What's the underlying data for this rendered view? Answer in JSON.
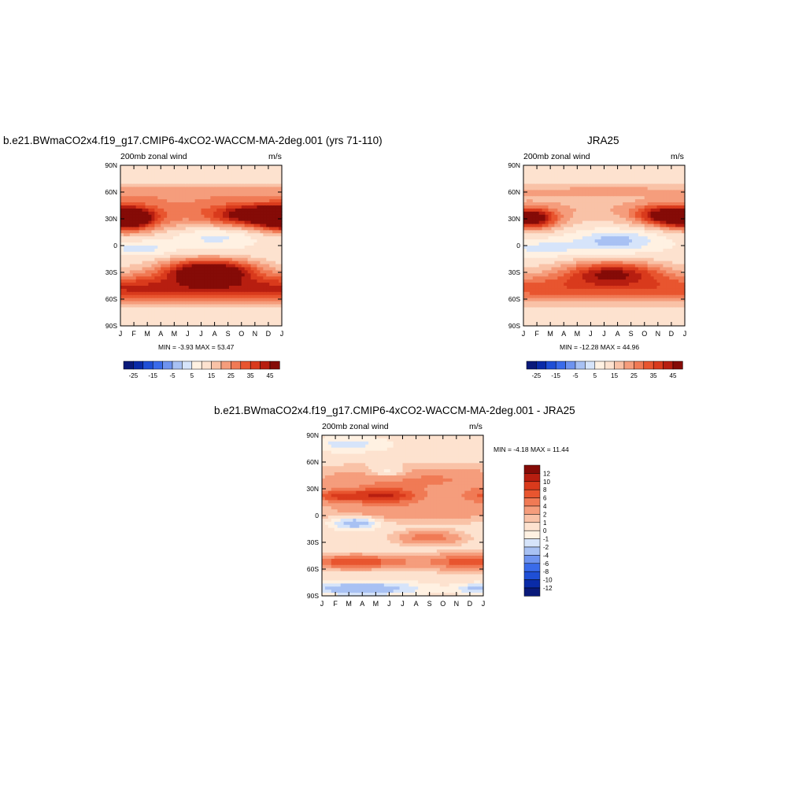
{
  "colors": {
    "blues": [
      "#0a1a7a",
      "#0a2ba8",
      "#1f4fd6",
      "#3a6bea",
      "#6e93ef",
      "#a8c1f3",
      "#d6e4fa"
    ],
    "whites": [
      "#fff1e2",
      "#fde2cf"
    ],
    "reds": [
      "#f9c2a7",
      "#f59d7c",
      "#f07a55",
      "#e8552f",
      "#d93a1c",
      "#b71e10",
      "#850b07"
    ]
  },
  "panels": [
    {
      "title": "b.e21.BWmaCO2x4.f19_g17.CMIP6-4xCO2-WACCM-MA-2deg.001 (yrs 71-110)",
      "left_label": "200mb zonal wind",
      "right_label": "m/s",
      "stats": "MIN =  -3.93 MAX =  53.47"
    },
    {
      "title": "JRA25",
      "left_label": "200mb zonal wind",
      "right_label": "m/s",
      "stats": "MIN = -12.28 MAX =  44.96"
    },
    {
      "title": "b.e21.BWmaCO2x4.f19_g17.CMIP6-4xCO2-WACCM-MA-2deg.001 - JRA25",
      "left_label": "200mb zonal wind",
      "right_label": "m/s",
      "stats": "MIN =  -4.18 MAX =  11.44"
    }
  ],
  "chart_data": [
    {
      "type": "heatmap",
      "title": "b.e21.BWmaCO2x4.f19_g17.CMIP6-4xCO2-WACCM-MA-2deg.001 (yrs 71-110)",
      "x_ticks": [
        "J",
        "F",
        "M",
        "A",
        "M",
        "J",
        "J",
        "A",
        "S",
        "O",
        "N",
        "D",
        "J"
      ],
      "y_ticks": [
        "90N",
        "60N",
        "30N",
        "0",
        "30S",
        "60S",
        "90S"
      ],
      "colorbar_labels": [
        "-25",
        "-15",
        "-5",
        "5",
        "15",
        "25",
        "35",
        "45"
      ],
      "min": -3.93,
      "max": 53.47
    },
    {
      "type": "heatmap",
      "title": "JRA25",
      "x_ticks": [
        "J",
        "F",
        "M",
        "A",
        "M",
        "J",
        "J",
        "A",
        "S",
        "O",
        "N",
        "D",
        "J"
      ],
      "y_ticks": [
        "90N",
        "60N",
        "30N",
        "0",
        "30S",
        "60S",
        "90S"
      ],
      "colorbar_labels": [
        "-25",
        "-15",
        "-5",
        "5",
        "15",
        "25",
        "35",
        "45"
      ],
      "min": -12.28,
      "max": 44.96
    },
    {
      "type": "heatmap",
      "title": "b.e21.BWmaCO2x4.f19_g17.CMIP6-4xCO2-WACCM-MA-2deg.001 - JRA25",
      "x_ticks": [
        "J",
        "F",
        "M",
        "A",
        "M",
        "J",
        "J",
        "A",
        "S",
        "O",
        "N",
        "D",
        "J"
      ],
      "y_ticks": [
        "90N",
        "60N",
        "30N",
        "0",
        "30S",
        "60S",
        "90S"
      ],
      "colorbar_labels": [
        "12",
        "10",
        "8",
        "6",
        "4",
        "2",
        "1",
        "0",
        "-1",
        "-2",
        "-4",
        "-6",
        "-8",
        "-10",
        "-12"
      ],
      "min": -4.18,
      "max": 11.44
    }
  ]
}
